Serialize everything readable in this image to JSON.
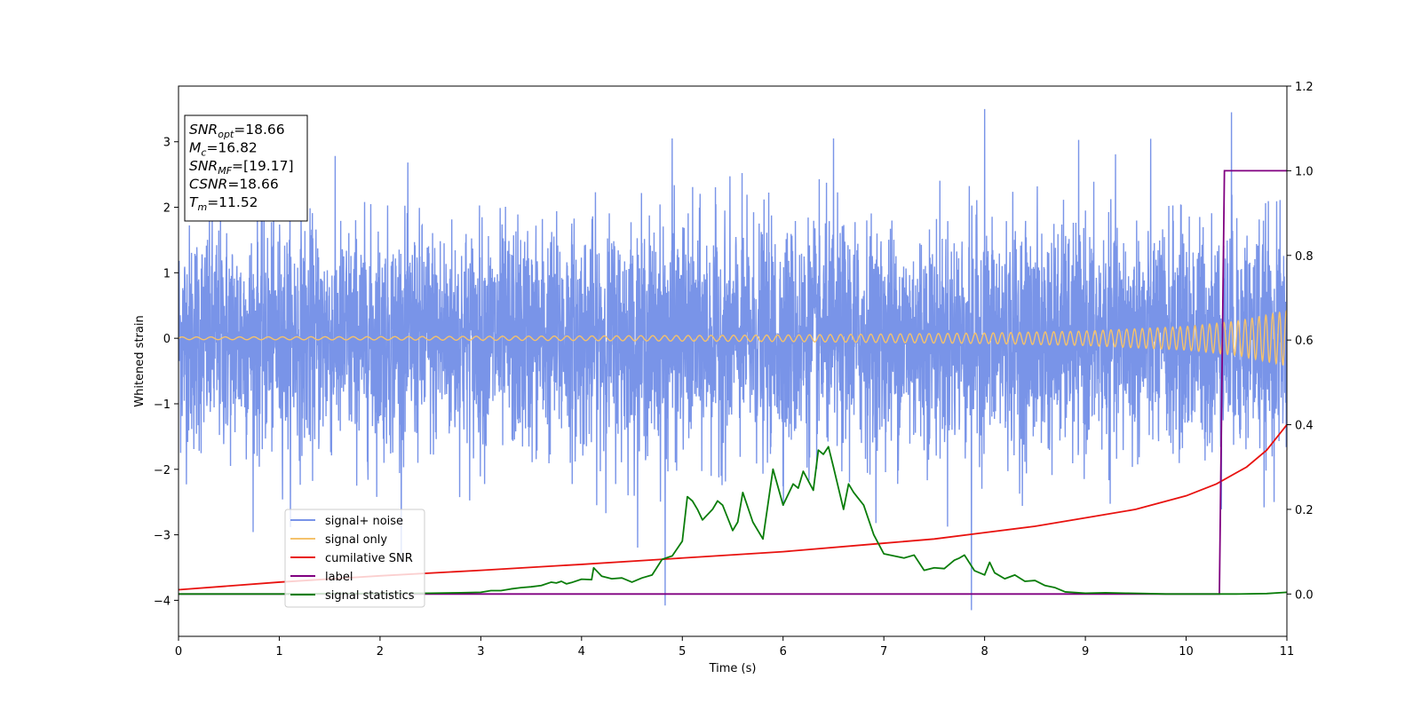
{
  "chart_data": {
    "type": "line",
    "xlabel": "Time (s)",
    "ylabel": "Whitened strain",
    "xlim": [
      0,
      11
    ],
    "ylim_left": [
      -4.55,
      3.85
    ],
    "ylim_right": [
      -0.1,
      1.2
    ],
    "x_ticks": [
      0,
      1,
      2,
      3,
      4,
      5,
      6,
      7,
      8,
      9,
      10,
      11
    ],
    "y_ticks_left": [
      -4,
      -3,
      -2,
      -1,
      0,
      1,
      2,
      3
    ],
    "y_ticks_right": [
      0.0,
      0.2,
      0.4,
      0.6,
      0.8,
      1.0,
      1.2
    ],
    "y_tick_labels_right": [
      "0.0",
      "0.2",
      "0.4",
      "0.6",
      "0.8",
      "1.0",
      "1.2"
    ],
    "legend_position": "lower-left",
    "annotation_lines": [
      {
        "name": "SNR",
        "sub": "opt",
        "value": "=18.66"
      },
      {
        "name": "M",
        "sub": "c",
        "value": "=16.82"
      },
      {
        "name": "SNR",
        "sub": "MF",
        "value": "=[19.17]"
      },
      {
        "name": "CSNR",
        "sub": "",
        "value": "=18.66"
      },
      {
        "name": "T",
        "sub": "m",
        "value": "=11.52"
      }
    ],
    "series": [
      {
        "name": "signal+ noise",
        "color": "#7994e8",
        "axis": "left",
        "noise_sigma": 0.85,
        "noise_range": [
          -4.1,
          3.5
        ],
        "notable_peaks": [
          [
            7.87,
            -4.15
          ],
          [
            4.83,
            -4.08
          ],
          [
            8.0,
            3.5
          ],
          [
            10.45,
            3.45
          ],
          [
            4.9,
            3.05
          ],
          [
            6.5,
            3.05
          ]
        ]
      },
      {
        "name": "signal only",
        "color": "#f5c26b",
        "axis": "left",
        "amplitude_envelope": {
          "x": [
            0,
            2,
            4,
            6,
            8,
            9,
            10,
            10.5,
            11
          ],
          "y": [
            0.02,
            0.025,
            0.035,
            0.05,
            0.08,
            0.11,
            0.18,
            0.26,
            0.42
          ]
        },
        "frequency_range": [
          7,
          15
        ]
      },
      {
        "name": "cumilative SNR",
        "color": "#e8120f",
        "axis": "right",
        "x": [
          0,
          1,
          2,
          3,
          4,
          5,
          6,
          7,
          7.5,
          8,
          8.5,
          9,
          9.5,
          10,
          10.3,
          10.6,
          10.8,
          11
        ],
        "y": [
          0.01,
          0.028,
          0.043,
          0.056,
          0.07,
          0.085,
          0.1,
          0.12,
          0.13,
          0.145,
          0.16,
          0.18,
          0.2,
          0.232,
          0.26,
          0.3,
          0.34,
          0.4
        ]
      },
      {
        "name": "label",
        "color": "#800080",
        "axis": "right",
        "x": [
          0,
          10.33,
          10.38,
          11
        ],
        "y": [
          0,
          0,
          1,
          1
        ]
      },
      {
        "name": "signal statistics",
        "color": "#0a7d0a",
        "axis": "right",
        "x": [
          0,
          0.5,
          1,
          1.5,
          2,
          2.5,
          2.8,
          3.0,
          3.1,
          3.2,
          3.3,
          3.4,
          3.5,
          3.6,
          3.7,
          3.75,
          3.8,
          3.85,
          3.9,
          4.0,
          4.1,
          4.12,
          4.2,
          4.3,
          4.4,
          4.5,
          4.6,
          4.7,
          4.8,
          4.9,
          5.0,
          5.05,
          5.1,
          5.15,
          5.2,
          5.3,
          5.35,
          5.4,
          5.5,
          5.55,
          5.6,
          5.7,
          5.8,
          5.9,
          6.0,
          6.1,
          6.15,
          6.2,
          6.3,
          6.35,
          6.4,
          6.45,
          6.5,
          6.6,
          6.65,
          6.7,
          6.8,
          6.9,
          7.0,
          7.1,
          7.2,
          7.3,
          7.4,
          7.5,
          7.6,
          7.7,
          7.75,
          7.8,
          7.9,
          8.0,
          8.05,
          8.1,
          8.2,
          8.3,
          8.4,
          8.5,
          8.6,
          8.7,
          8.8,
          9.0,
          9.2,
          9.4,
          9.6,
          9.8,
          10.0,
          10.3,
          10.5,
          10.8,
          11
        ],
        "y": [
          0.0,
          0.0,
          0.0,
          0.001,
          0.001,
          0.002,
          0.003,
          0.004,
          0.008,
          0.008,
          0.012,
          0.015,
          0.017,
          0.02,
          0.028,
          0.026,
          0.03,
          0.024,
          0.027,
          0.035,
          0.034,
          0.062,
          0.042,
          0.036,
          0.038,
          0.028,
          0.038,
          0.045,
          0.082,
          0.09,
          0.125,
          0.23,
          0.22,
          0.2,
          0.175,
          0.2,
          0.22,
          0.21,
          0.15,
          0.17,
          0.24,
          0.17,
          0.13,
          0.295,
          0.21,
          0.26,
          0.25,
          0.29,
          0.245,
          0.34,
          0.33,
          0.348,
          0.3,
          0.2,
          0.26,
          0.24,
          0.21,
          0.14,
          0.095,
          0.09,
          0.085,
          0.092,
          0.056,
          0.062,
          0.06,
          0.08,
          0.085,
          0.092,
          0.055,
          0.045,
          0.075,
          0.05,
          0.036,
          0.045,
          0.03,
          0.032,
          0.02,
          0.015,
          0.005,
          0.002,
          0.003,
          0.002,
          0.001,
          0.0,
          0.0,
          0.0,
          0.0,
          0.001,
          0.004
        ]
      }
    ]
  }
}
